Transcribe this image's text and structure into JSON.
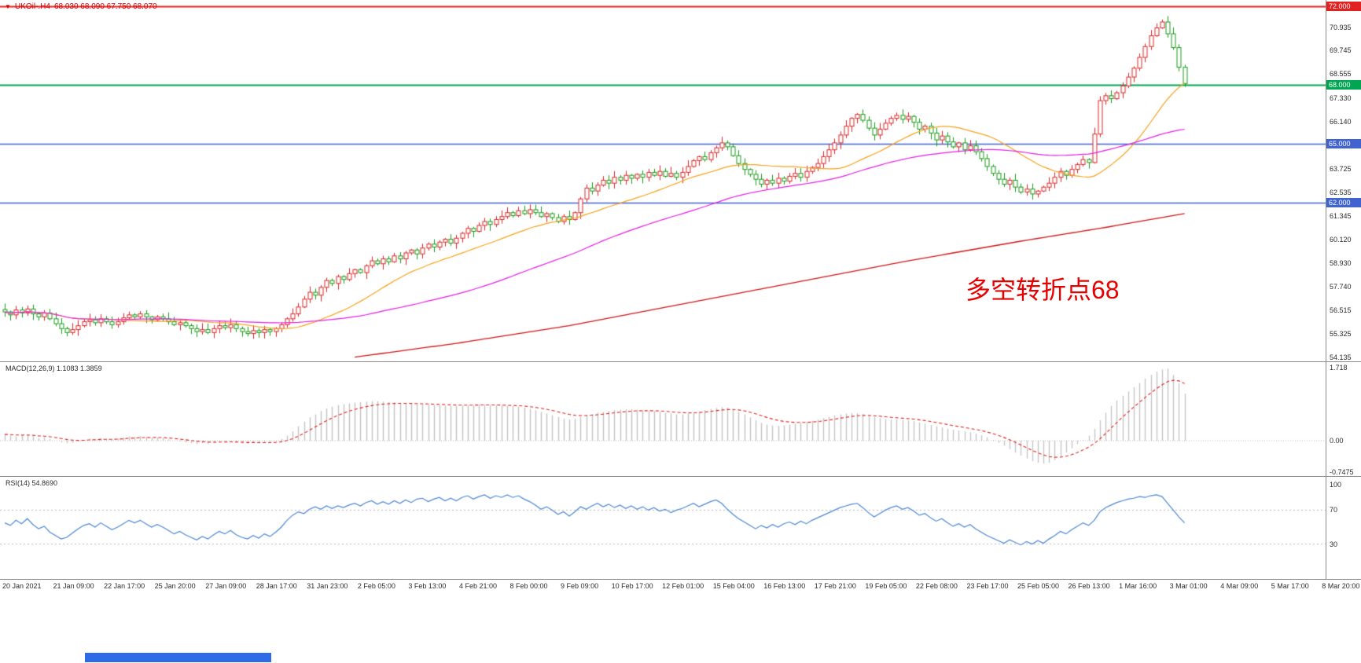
{
  "header": {
    "arrow": "▼",
    "symbol": "UKOil-.H4",
    "ohlc": "68.030 68.090 67.750 68.070"
  },
  "indicators": {
    "macd_label": "MACD(12,26,9) 1.1083 1.3859",
    "rsi_label": "RSI(14) 54.8690"
  },
  "annotation": {
    "text": "多空转折点68",
    "color": "#e60000"
  },
  "ma": {
    "fast_color": "#f5a21d",
    "fast_period": 20,
    "medium_color": "#e31fe3",
    "medium_period": 55,
    "slow_color": "#cf1616",
    "slow_anchors": [
      [
        62,
        54.15
      ],
      [
        80,
        54.85
      ],
      [
        100,
        55.75
      ],
      [
        120,
        56.85
      ],
      [
        140,
        57.95
      ],
      [
        160,
        59.05
      ],
      [
        180,
        60.05
      ],
      [
        195,
        60.75
      ],
      [
        209,
        61.45
      ]
    ]
  },
  "levels": [
    {
      "price": 72.0,
      "color": "#e22222",
      "width": 2
    },
    {
      "price": 68.0,
      "color": "#00a651",
      "width": 2
    },
    {
      "price": 65.0,
      "color": "#4063d0",
      "width": 1.5
    },
    {
      "price": 62.0,
      "color": "#4063d0",
      "width": 1.5
    }
  ],
  "price_scale": {
    "ticks": [
      70.935,
      69.745,
      68.555,
      67.33,
      66.14,
      63.725,
      62.535,
      61.345,
      60.12,
      58.93,
      57.74,
      56.515,
      55.325,
      54.135
    ],
    "badges": [
      {
        "value": "72.000",
        "price": 72.0,
        "color": "#e22222"
      },
      {
        "value": "68.000",
        "price": 68.0,
        "color": "#00a651"
      },
      {
        "value": "65.000",
        "price": 65.0,
        "color": "#4063d0"
      },
      {
        "value": "62.000",
        "price": 62.0,
        "color": "#4063d0"
      }
    ]
  },
  "scales": {
    "macd": {
      "max": "1.718",
      "zero": "0.00",
      "min": "-0.7475"
    },
    "rsi": [
      "100",
      "70",
      "30"
    ]
  },
  "chart_data": [
    {
      "type": "candlestick",
      "symbol": "UKOil- H4",
      "ylim": [
        54.135,
        72.0
      ],
      "up_color": "#dd2626",
      "down_color": "#179a17",
      "bars_per_label": 8,
      "x_labels": [
        "20 Jan 2021",
        "21 Jan 09:00",
        "22 Jan 17:00",
        "25 Jan 20:00",
        "27 Jan 09:00",
        "28 Jan 17:00",
        "31 Jan 23:00",
        "2 Feb 05:00",
        "3 Feb 13:00",
        "4 Feb 21:00",
        "8 Feb 00:00",
        "9 Feb 09:00",
        "10 Feb 17:00",
        "12 Feb 01:00",
        "15 Feb 04:00",
        "16 Feb 13:00",
        "17 Feb 21:00",
        "19 Feb 05:00",
        "22 Feb 08:00",
        "23 Feb 17:00",
        "25 Feb 05:00",
        "26 Feb 13:00",
        "1 Mar 16:00",
        "3 Mar 01:00",
        "4 Mar 09:00",
        "5 Mar 17:00",
        "8 Mar 20:00"
      ],
      "closes": [
        56.45,
        56.3,
        56.55,
        56.4,
        56.6,
        56.35,
        56.2,
        56.4,
        56.1,
        55.85,
        55.6,
        55.4,
        55.55,
        55.75,
        55.95,
        56.05,
        55.9,
        56.1,
        55.95,
        55.8,
        55.95,
        56.15,
        56.3,
        56.2,
        56.35,
        56.2,
        56.05,
        56.2,
        56.1,
        55.95,
        55.8,
        55.9,
        55.75,
        55.6,
        55.45,
        55.55,
        55.4,
        55.6,
        55.75,
        55.65,
        55.8,
        55.6,
        55.45,
        55.35,
        55.5,
        55.4,
        55.55,
        55.45,
        55.6,
        55.8,
        56.1,
        56.35,
        56.7,
        57.1,
        57.45,
        57.3,
        57.7,
        58.05,
        57.9,
        58.25,
        58.1,
        58.4,
        58.6,
        58.45,
        58.8,
        59.05,
        58.9,
        59.15,
        59.0,
        59.3,
        59.15,
        59.45,
        59.6,
        59.4,
        59.7,
        59.9,
        59.75,
        60.0,
        60.15,
        59.95,
        60.2,
        60.45,
        60.7,
        60.55,
        60.85,
        61.05,
        60.9,
        61.15,
        61.3,
        61.5,
        61.35,
        61.6,
        61.45,
        61.65,
        61.5,
        61.3,
        61.45,
        61.25,
        61.05,
        61.3,
        61.15,
        61.5,
        62.2,
        62.75,
        62.6,
        62.9,
        63.15,
        63.0,
        63.3,
        63.15,
        63.4,
        63.25,
        63.45,
        63.3,
        63.55,
        63.4,
        63.6,
        63.35,
        63.5,
        63.3,
        63.55,
        63.85,
        64.15,
        64.35,
        64.2,
        64.55,
        64.8,
        65.05,
        64.85,
        64.4,
        64.0,
        63.7,
        63.45,
        63.2,
        62.95,
        63.15,
        63.0,
        63.25,
        63.1,
        63.35,
        63.5,
        63.3,
        63.6,
        63.8,
        64.0,
        64.35,
        64.7,
        65.05,
        65.45,
        65.9,
        66.3,
        66.5,
        66.2,
        65.8,
        65.45,
        65.75,
        66.05,
        66.3,
        66.45,
        66.25,
        66.4,
        66.1,
        65.75,
        65.9,
        65.55,
        65.2,
        65.4,
        65.1,
        64.85,
        65.05,
        64.7,
        64.9,
        64.6,
        64.25,
        63.85,
        63.5,
        63.2,
        62.95,
        63.15,
        62.8,
        62.55,
        62.7,
        62.45,
        62.6,
        62.8,
        63.0,
        63.3,
        63.6,
        63.4,
        63.7,
        63.95,
        64.2,
        64.05,
        65.5,
        67.2,
        67.45,
        67.3,
        67.6,
        67.95,
        68.4,
        68.85,
        69.4,
        69.95,
        70.5,
        70.9,
        71.2,
        70.6,
        69.9,
        68.9,
        68.07
      ]
    },
    {
      "type": "bar",
      "name": "MACD(12,26,9)",
      "current": 1.1083,
      "signal_current": 1.3859,
      "signal_period": 9,
      "ylim": [
        -0.7475,
        1.718
      ],
      "histogram_color": "#c4c4c4",
      "signal_color": "#e02020",
      "values": [
        0.15,
        0.12,
        0.1,
        0.12,
        0.14,
        0.1,
        0.06,
        0.08,
        0.04,
        0.0,
        -0.04,
        -0.06,
        -0.05,
        -0.02,
        0.02,
        0.05,
        0.04,
        0.06,
        0.05,
        0.03,
        0.05,
        0.08,
        0.1,
        0.09,
        0.11,
        0.09,
        0.07,
        0.08,
        0.06,
        0.03,
        0.0,
        -0.02,
        -0.04,
        -0.06,
        -0.08,
        -0.06,
        -0.08,
        -0.05,
        -0.02,
        -0.03,
        -0.01,
        -0.04,
        -0.06,
        -0.07,
        -0.05,
        -0.06,
        -0.04,
        -0.05,
        -0.02,
        0.04,
        0.12,
        0.22,
        0.34,
        0.45,
        0.55,
        0.62,
        0.7,
        0.76,
        0.8,
        0.84,
        0.86,
        0.88,
        0.9,
        0.91,
        0.92,
        0.93,
        0.93,
        0.92,
        0.91,
        0.9,
        0.89,
        0.88,
        0.87,
        0.86,
        0.85,
        0.85,
        0.84,
        0.84,
        0.83,
        0.82,
        0.82,
        0.83,
        0.84,
        0.84,
        0.85,
        0.85,
        0.84,
        0.84,
        0.83,
        0.82,
        0.81,
        0.8,
        0.78,
        0.75,
        0.72,
        0.68,
        0.64,
        0.6,
        0.56,
        0.52,
        0.5,
        0.52,
        0.56,
        0.6,
        0.63,
        0.66,
        0.68,
        0.7,
        0.72,
        0.73,
        0.74,
        0.74,
        0.73,
        0.72,
        0.71,
        0.7,
        0.68,
        0.66,
        0.64,
        0.62,
        0.62,
        0.64,
        0.66,
        0.69,
        0.72,
        0.75,
        0.77,
        0.79,
        0.78,
        0.74,
        0.68,
        0.62,
        0.55,
        0.48,
        0.42,
        0.38,
        0.36,
        0.35,
        0.36,
        0.38,
        0.4,
        0.42,
        0.44,
        0.47,
        0.5,
        0.53,
        0.56,
        0.59,
        0.62,
        0.64,
        0.65,
        0.65,
        0.63,
        0.6,
        0.56,
        0.53,
        0.51,
        0.5,
        0.5,
        0.49,
        0.48,
        0.46,
        0.43,
        0.4,
        0.37,
        0.34,
        0.31,
        0.28,
        0.26,
        0.24,
        0.22,
        0.2,
        0.17,
        0.13,
        0.08,
        0.02,
        -0.05,
        -0.12,
        -0.2,
        -0.28,
        -0.35,
        -0.42,
        -0.48,
        -0.52,
        -0.54,
        -0.52,
        -0.46,
        -0.38,
        -0.28,
        -0.18,
        -0.08,
        0.02,
        0.12,
        0.28,
        0.48,
        0.66,
        0.82,
        0.95,
        1.06,
        1.16,
        1.26,
        1.36,
        1.46,
        1.55,
        1.63,
        1.68,
        1.7,
        1.55,
        1.35,
        1.11
      ]
    },
    {
      "type": "line",
      "name": "RSI(14)",
      "current": 54.869,
      "ylim": [
        0,
        100
      ],
      "levels": [
        70,
        30
      ],
      "color": "#4a86d2",
      "values": [
        55,
        52,
        58,
        54,
        60,
        53,
        48,
        51,
        44,
        40,
        36,
        38,
        43,
        48,
        52,
        54,
        50,
        55,
        51,
        47,
        50,
        54,
        58,
        55,
        58,
        54,
        50,
        53,
        50,
        46,
        42,
        45,
        41,
        38,
        35,
        39,
        36,
        41,
        45,
        42,
        46,
        41,
        38,
        36,
        40,
        37,
        42,
        39,
        44,
        50,
        58,
        64,
        68,
        66,
        71,
        74,
        71,
        75,
        72,
        75,
        73,
        76,
        78,
        75,
        79,
        81,
        77,
        80,
        77,
        81,
        78,
        82,
        79,
        83,
        84,
        80,
        83,
        85,
        81,
        84,
        81,
        85,
        87,
        83,
        86,
        88,
        84,
        87,
        85,
        88,
        85,
        87,
        83,
        80,
        76,
        71,
        74,
        70,
        65,
        68,
        63,
        68,
        74,
        71,
        75,
        78,
        74,
        77,
        73,
        76,
        72,
        75,
        71,
        74,
        70,
        73,
        69,
        71,
        67,
        70,
        72,
        75,
        78,
        74,
        77,
        80,
        82,
        78,
        71,
        65,
        60,
        56,
        52,
        48,
        52,
        49,
        53,
        50,
        54,
        56,
        53,
        57,
        54,
        58,
        61,
        64,
        67,
        70,
        73,
        75,
        77,
        78,
        73,
        67,
        62,
        66,
        70,
        73,
        75,
        71,
        73,
        69,
        64,
        66,
        61,
        57,
        60,
        55,
        51,
        54,
        50,
        53,
        48,
        44,
        40,
        37,
        34,
        31,
        35,
        32,
        29,
        33,
        30,
        34,
        31,
        36,
        40,
        45,
        42,
        47,
        51,
        55,
        52,
        58,
        68,
        73,
        76,
        79,
        81,
        83,
        84,
        86,
        85,
        87,
        88,
        86,
        78,
        70,
        62,
        55
      ]
    }
  ]
}
